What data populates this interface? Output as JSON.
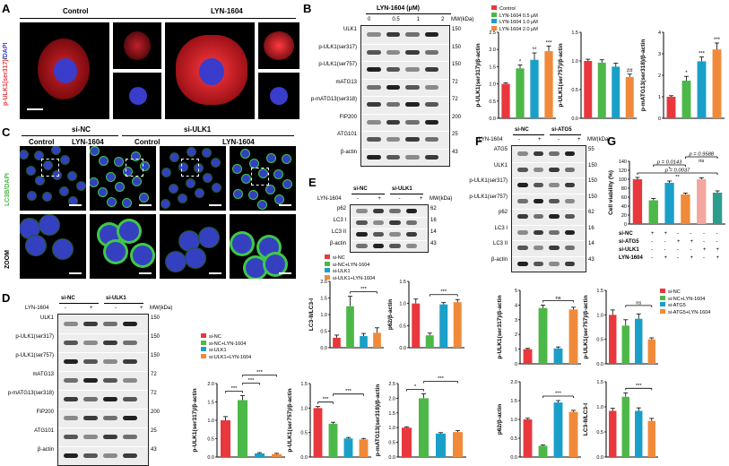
{
  "panels": {
    "A": {
      "letter": "A",
      "left": "Control",
      "right": "LYN-1604",
      "ylabel": "p-ULK1(ser317)",
      "ylabel_sep": "/",
      "ylabel2": "DAPI"
    },
    "B": {
      "letter": "B",
      "treat": "LYN-1604 (μM)",
      "doses": [
        "0",
        "0.5",
        "1",
        "2"
      ],
      "mw_unit": "MW(kDa)",
      "blots": [
        {
          "name": "ULK1",
          "mw": "150"
        },
        {
          "name": "p-ULK1(ser317)",
          "mw": "150"
        },
        {
          "name": "p-ULK1(ser757)",
          "mw": "150"
        },
        {
          "name": "mATG13",
          "mw": "72"
        },
        {
          "name": "p-mATG13(ser318)",
          "mw": "72"
        },
        {
          "name": "FIP200",
          "mw": "200"
        },
        {
          "name": "ATG101",
          "mw": "25"
        },
        {
          "name": "β-actin",
          "mw": "43"
        }
      ]
    },
    "C": {
      "letter": "C",
      "groups": [
        "si-NC",
        "si-ULK1"
      ],
      "cols": [
        "Control",
        "LYN-1604",
        "Control",
        "LYN-1604"
      ],
      "ylabel": "LC3B/DAPI",
      "zoom": "ZOOM"
    },
    "D": {
      "letter": "D",
      "treat": "LYN-1604",
      "signs": [
        "-",
        "+",
        "-",
        "+"
      ],
      "groups": [
        "si-NC",
        "si-ULK1"
      ],
      "mw_unit": "MW(kDa)",
      "blots": [
        {
          "name": "ULK1",
          "mw": "150"
        },
        {
          "name": "p-ULK1(ser317)",
          "mw": "150"
        },
        {
          "name": "p-ULK1(ser757)",
          "mw": "150"
        },
        {
          "name": "mATG13",
          "mw": "72"
        },
        {
          "name": "p-mATG13(ser318)",
          "mw": "72"
        },
        {
          "name": "FIP200",
          "mw": "200"
        },
        {
          "name": "ATG101",
          "mw": "25"
        },
        {
          "name": "β-actin",
          "mw": "43"
        }
      ]
    },
    "E": {
      "letter": "E",
      "treat": "LYN-1604",
      "signs": [
        "-",
        "+",
        "-",
        "+"
      ],
      "groups": [
        "si-NC",
        "si-ULK1"
      ],
      "mw_unit": "MW(kDa)",
      "blots": [
        {
          "name": "p62",
          "mw": "62"
        },
        {
          "name": "LC3 I",
          "mw": "16"
        },
        {
          "name": "LC3 II",
          "mw": "14"
        },
        {
          "name": "β-actin",
          "mw": "43"
        }
      ]
    },
    "F": {
      "letter": "F",
      "treat": "LYN-1604",
      "signs": [
        "-",
        "+",
        "-",
        "+"
      ],
      "groups": [
        "si-NC",
        "si-ATG5"
      ],
      "mw_unit": "MW(kDa)",
      "blots": [
        {
          "name": "ATG5",
          "mw": "55"
        },
        {
          "name": "ULK1",
          "mw": "150"
        },
        {
          "name": "p-ULK1(ser317)",
          "mw": "150"
        },
        {
          "name": "p-ULK1(ser757)",
          "mw": "150"
        },
        {
          "name": "p62",
          "mw": "62"
        },
        {
          "name": "LC3 I",
          "mw": "16"
        },
        {
          "name": "LC3 II",
          "mw": "14"
        },
        {
          "name": "β-actin",
          "mw": "43"
        }
      ]
    },
    "G": {
      "letter": "G",
      "row_labels": [
        "si-NC",
        "si-ATG5",
        "si-ULK1",
        "LYN-1604"
      ],
      "signs": [
        [
          "+",
          "+",
          "-",
          "-",
          "-",
          "-"
        ],
        [
          "-",
          "-",
          "+",
          "+",
          "-",
          "-"
        ],
        [
          "-",
          "-",
          "-",
          "-",
          "+",
          "+"
        ],
        [
          "-",
          "+",
          "-",
          "+",
          "-",
          "+"
        ]
      ]
    }
  },
  "legends": {
    "B": [
      "Control",
      "LYN-1604 0.5 μM",
      "LYN-1604 1.0 μM",
      "LYN-1604 2.0 μM"
    ],
    "D": [
      "si-NC",
      "si-NC+LYN-1604",
      "si-ULK1",
      "si-ULK1+LYN-1604"
    ],
    "E": [
      "si-NC",
      "si-NC+LYN-1604",
      "si-ULK1",
      "si-ULK1+LYN-1604"
    ],
    "F": [
      "si-NC",
      "si-NC+LYN-1604",
      "si-ATG5",
      "si-ATG5+LYN-1604"
    ]
  },
  "colors": {
    "c1": "#e8383d",
    "c2": "#4cb848",
    "c3": "#1aa0c8",
    "c4": "#f08a3a",
    "c5": "#f4a6a0",
    "c6": "#2e9c8c"
  },
  "chart_data": [
    {
      "id": "B1",
      "type": "bar",
      "ylabel": "p-ULK1(ser317)/β-actin",
      "ylim": [
        0,
        2.5
      ],
      "yticks": [
        "0.0",
        "0.5",
        "1.0",
        "1.5",
        "2.0",
        "2.5"
      ],
      "values": [
        1.0,
        1.45,
        1.7,
        1.95
      ],
      "errors": [
        0.03,
        0.1,
        0.2,
        0.15
      ],
      "sig": [
        "",
        "*",
        "**",
        "***"
      ]
    },
    {
      "id": "B2",
      "type": "bar",
      "ylabel": "p-ULK1(ser757)/β-actin",
      "ylim": [
        0,
        1.5
      ],
      "yticks": [
        "0.0",
        "0.5",
        "1.0",
        "1.5"
      ],
      "values": [
        1.0,
        0.97,
        0.9,
        0.72
      ],
      "errors": [
        0.03,
        0.05,
        0.06,
        0.05
      ],
      "sig": [
        "",
        "",
        "",
        "##"
      ]
    },
    {
      "id": "B3",
      "type": "bar",
      "ylabel": "p-mATG13(ser318)/β-actin",
      "ylim": [
        0,
        4
      ],
      "yticks": [
        "0",
        "1",
        "2",
        "3",
        "4"
      ],
      "values": [
        1.0,
        1.75,
        2.65,
        3.2
      ],
      "errors": [
        0.05,
        0.2,
        0.2,
        0.3
      ],
      "sig": [
        "",
        "*",
        "***",
        "***"
      ]
    },
    {
      "id": "D1",
      "type": "bar",
      "ylabel": "p-ULK1(ser317)/β-actin",
      "ylim": [
        0,
        2.0
      ],
      "yticks": [
        "0.0",
        "0.5",
        "1.0",
        "1.5",
        "2.0"
      ],
      "values": [
        1.0,
        1.55,
        0.1,
        0.08
      ],
      "errors": [
        0.1,
        0.12,
        0.02,
        0.02
      ],
      "brackets": [
        [
          "***",
          0,
          1
        ],
        [
          "***",
          1,
          2
        ],
        [
          "***",
          1,
          3
        ]
      ]
    },
    {
      "id": "D2",
      "type": "bar",
      "ylabel": "p-ULK1(ser757)/β-actin",
      "ylim": [
        0,
        1.5
      ],
      "yticks": [
        "0.0",
        "0.5",
        "1.0",
        "1.5"
      ],
      "values": [
        1.0,
        0.68,
        0.38,
        0.36
      ],
      "errors": [
        0.03,
        0.03,
        0.02,
        0.02
      ],
      "brackets": [
        [
          "***",
          0,
          1
        ],
        [
          "***",
          1,
          3
        ]
      ]
    },
    {
      "id": "D3",
      "type": "bar",
      "ylabel": "p-mATG13(ser318)/β-actin",
      "ylim": [
        0,
        2.5
      ],
      "yticks": [
        "0.0",
        "0.5",
        "1.0",
        "1.5",
        "2.0",
        "2.5"
      ],
      "values": [
        1.0,
        2.0,
        0.8,
        0.85
      ],
      "errors": [
        0.03,
        0.15,
        0.03,
        0.05
      ],
      "brackets": [
        [
          "*",
          0,
          1
        ],
        [
          "***",
          1,
          3
        ]
      ]
    },
    {
      "id": "E1",
      "type": "bar",
      "ylabel": "LC3-II/LC3-I",
      "ylim": [
        0,
        2.0
      ],
      "yticks": [
        "0.0",
        "0.5",
        "1.0",
        "1.5",
        "2.0"
      ],
      "values": [
        0.3,
        1.25,
        0.35,
        0.45
      ],
      "errors": [
        0.08,
        0.3,
        0.08,
        0.15
      ],
      "brackets": [
        [
          "***",
          1,
          3
        ]
      ]
    },
    {
      "id": "E2",
      "type": "bar",
      "ylabel": "p62/β-actin",
      "ylim": [
        0,
        1.5
      ],
      "yticks": [
        "0.0",
        "0.5",
        "1.0",
        "1.5"
      ],
      "values": [
        1.0,
        0.28,
        0.98,
        1.03
      ],
      "errors": [
        0.1,
        0.05,
        0.04,
        0.06
      ],
      "brackets": [
        [
          "***",
          1,
          3
        ]
      ]
    },
    {
      "id": "F1",
      "type": "bar",
      "ylabel": "p-ULK1(ser317)/β-actin",
      "ylim": [
        0,
        5
      ],
      "yticks": [
        "0",
        "1",
        "2",
        "3",
        "4",
        "5"
      ],
      "values": [
        1.0,
        3.8,
        1.05,
        3.7
      ],
      "errors": [
        0.05,
        0.2,
        0.1,
        0.15
      ],
      "brackets": [
        [
          "ns",
          1,
          3
        ]
      ]
    },
    {
      "id": "F2",
      "type": "bar",
      "ylabel": "p-ULK1(ser757)/β-actin",
      "ylim": [
        0,
        1.5
      ],
      "yticks": [
        "0.0",
        "0.5",
        "1.0",
        "1.5"
      ],
      "values": [
        1.0,
        0.78,
        0.92,
        0.5
      ],
      "errors": [
        0.1,
        0.12,
        0.1,
        0.03
      ],
      "brackets": [
        [
          "ns",
          1,
          3
        ]
      ]
    },
    {
      "id": "F3",
      "type": "bar",
      "ylabel": "p62/β-actin",
      "ylim": [
        0,
        2.0
      ],
      "yticks": [
        "0.0",
        "0.5",
        "1.0",
        "1.5",
        "2.0"
      ],
      "values": [
        1.0,
        0.3,
        1.45,
        1.2
      ],
      "errors": [
        0.03,
        0.02,
        0.05,
        0.04
      ],
      "brackets": [
        [
          "***",
          1,
          3
        ]
      ]
    },
    {
      "id": "F4",
      "type": "bar",
      "ylabel": "LC3-II/LC3-I",
      "ylim": [
        0,
        1.5
      ],
      "yticks": [
        "0.0",
        "0.5",
        "1.0",
        "1.5"
      ],
      "values": [
        0.92,
        1.2,
        0.92,
        0.72
      ],
      "errors": [
        0.05,
        0.08,
        0.06,
        0.05
      ],
      "brackets": [
        [
          "***",
          1,
          3
        ]
      ]
    },
    {
      "id": "G",
      "type": "bar",
      "ylabel": "Cell viability (%)",
      "ylim": [
        0,
        140
      ],
      "yticks": [
        "0",
        "20",
        "40",
        "60",
        "80",
        "100",
        "120",
        "140"
      ],
      "values": [
        100,
        53,
        92,
        66,
        100,
        70
      ],
      "errors": [
        4,
        4,
        4,
        3,
        3,
        4
      ],
      "brackets": [
        [
          "p = 0.0037",
          0,
          5
        ],
        [
          "**",
          0,
          5
        ],
        [
          "p = 0.0143",
          1,
          3
        ],
        [
          "*",
          1,
          3
        ],
        [
          "p = 0.9588",
          3,
          5
        ],
        [
          "ns",
          3,
          5
        ]
      ]
    }
  ]
}
